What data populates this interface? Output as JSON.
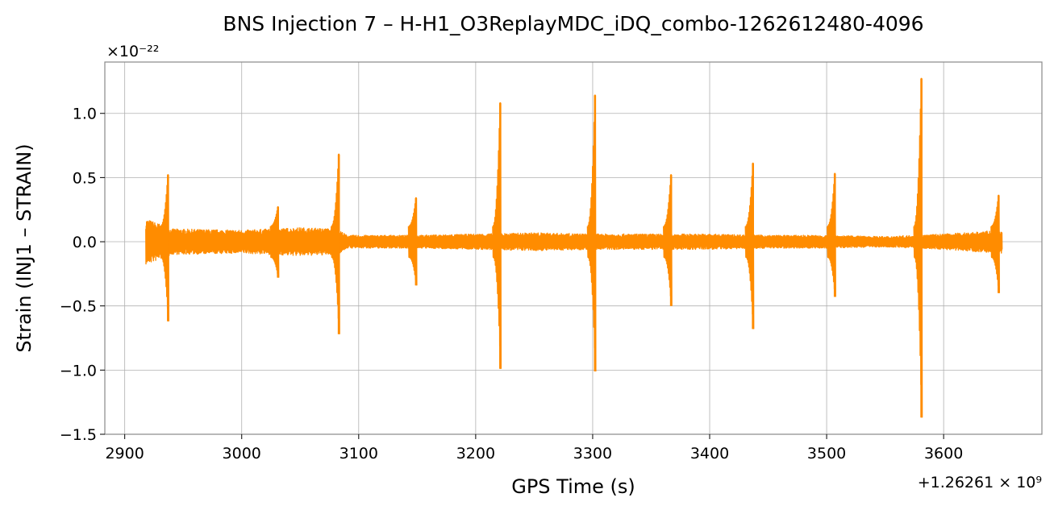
{
  "chart_data": {
    "type": "line",
    "title": "BNS Injection 7 – H-H1_O3ReplayMDC_iDQ_combo-1262612480-4096",
    "xlabel": "GPS Time (s)",
    "ylabel": "Strain (INJ1 – STRAIN)",
    "y_multiplier": "×10⁻²²",
    "x_offset_label": "+1.26261 × 10⁹",
    "xlim": [
      2883,
      3684
    ],
    "ylim": [
      -1.5,
      1.4
    ],
    "x_ticks": [
      2900,
      3000,
      3100,
      3200,
      3300,
      3400,
      3500,
      3600
    ],
    "x_tick_labels": [
      "2900",
      "3000",
      "3100",
      "3200",
      "3300",
      "3400",
      "3500",
      "3600"
    ],
    "y_ticks": [
      -1.5,
      -1.0,
      -0.5,
      0.0,
      0.5,
      1.0
    ],
    "y_tick_labels": [
      "−1.5",
      "−1.0",
      "−0.5",
      "0.0",
      "0.5",
      "1.0"
    ],
    "grid": true,
    "line_color": "#ff8c00",
    "data_range": [
      2918,
      3650
    ],
    "noise_envelope": [
      {
        "x": 2918,
        "amp": 0.18
      },
      {
        "x": 2935,
        "amp": 0.12
      },
      {
        "x": 2940,
        "amp": 0.1
      },
      {
        "x": 3000,
        "amp": 0.09
      },
      {
        "x": 3050,
        "amp": 0.11
      },
      {
        "x": 3082,
        "amp": 0.1
      },
      {
        "x": 3090,
        "amp": 0.05
      },
      {
        "x": 3150,
        "amp": 0.05
      },
      {
        "x": 3200,
        "amp": 0.06
      },
      {
        "x": 3250,
        "amp": 0.07
      },
      {
        "x": 3300,
        "amp": 0.06
      },
      {
        "x": 3350,
        "amp": 0.06
      },
      {
        "x": 3400,
        "amp": 0.06
      },
      {
        "x": 3450,
        "amp": 0.05
      },
      {
        "x": 3500,
        "amp": 0.05
      },
      {
        "x": 3550,
        "amp": 0.04
      },
      {
        "x": 3600,
        "amp": 0.06
      },
      {
        "x": 3650,
        "amp": 0.09
      }
    ],
    "glitches": [
      {
        "x": 2937,
        "max": 0.52,
        "min": -0.62
      },
      {
        "x": 3031,
        "max": 0.27,
        "min": -0.28
      },
      {
        "x": 3083,
        "max": 0.68,
        "min": -0.72
      },
      {
        "x": 3149,
        "max": 0.34,
        "min": -0.34
      },
      {
        "x": 3221,
        "max": 1.08,
        "min": -0.99
      },
      {
        "x": 3302,
        "max": 1.14,
        "min": -1.01
      },
      {
        "x": 3367,
        "max": 0.52,
        "min": -0.5
      },
      {
        "x": 3437,
        "max": 0.61,
        "min": -0.68
      },
      {
        "x": 3507,
        "max": 0.53,
        "min": -0.43
      },
      {
        "x": 3581,
        "max": 1.27,
        "min": -1.37
      },
      {
        "x": 3647,
        "max": 0.36,
        "min": -0.4
      }
    ]
  }
}
